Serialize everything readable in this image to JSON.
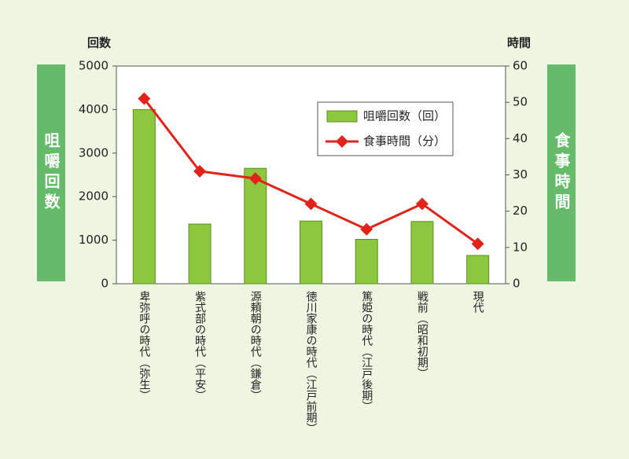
{
  "chart_data": {
    "type": "bar+line",
    "ylabel": "咀嚼回数",
    "y2label": "食事時間",
    "yunit": "回数",
    "y2unit": "時間",
    "categories": [
      "卑弥呼の時代（弥生）",
      "紫式部の時代（平安）",
      "源頼朝の時代（鎌倉）",
      "徳川家康の時代（江戸前期）",
      "篤姫の時代（江戸後期）",
      "戦前（昭和初期）",
      "現代"
    ],
    "series": [
      {
        "name": "咀嚼回数（回）",
        "type": "bar",
        "color": "#8dc63f",
        "values": [
          4000,
          1370,
          2650,
          1440,
          1020,
          1430,
          650
        ]
      },
      {
        "name": "食事時間（分）",
        "type": "line",
        "axis": "y2",
        "color": "#e2231a",
        "values": [
          51,
          31,
          29,
          22,
          15,
          22,
          11
        ]
      }
    ],
    "ylim": [
      0,
      5000
    ],
    "yticks": [
      0,
      1000,
      2000,
      3000,
      4000,
      5000
    ],
    "y2lim": [
      0,
      60
    ],
    "y2ticks": [
      0,
      10,
      20,
      30,
      40,
      50,
      60
    ]
  }
}
